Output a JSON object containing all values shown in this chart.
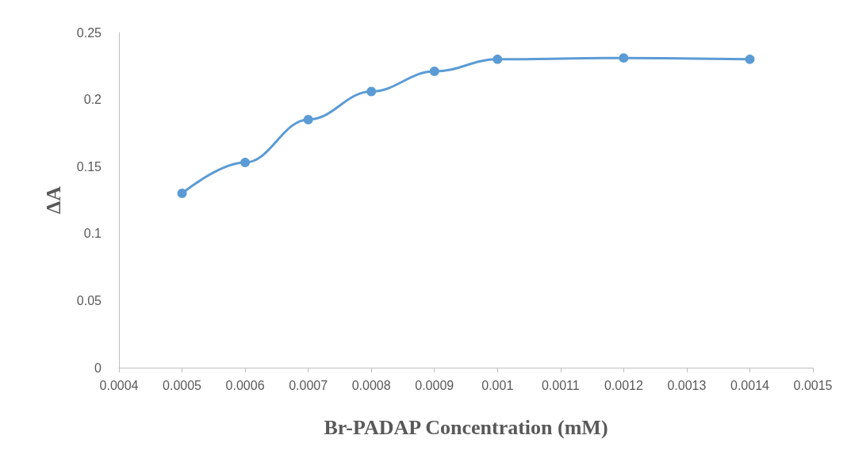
{
  "chart_data": {
    "type": "line",
    "xlabel": "Br-PADAP Concentration (mM)",
    "ylabel": "ΔA",
    "x": [
      0.0005,
      0.0006,
      0.0007,
      0.0008,
      0.0009,
      0.001,
      0.0012,
      0.0014
    ],
    "series": [
      {
        "color": "#5b9bd5",
        "values": [
          0.13,
          0.153,
          0.185,
          0.206,
          0.221,
          0.23,
          0.231,
          0.23
        ]
      }
    ],
    "xlim": [
      0.0004,
      0.0015
    ],
    "xticks": [
      0.0004,
      0.0005,
      0.0006,
      0.0007,
      0.0008,
      0.0009,
      0.001,
      0.0011,
      0.0012,
      0.0013,
      0.0014,
      0.0015
    ],
    "ylim": [
      0,
      0.25
    ],
    "yticks": [
      0,
      0.05,
      0.1,
      0.15,
      0.2,
      0.25
    ],
    "grid": false,
    "marker": "circle",
    "line_style": "solid"
  }
}
